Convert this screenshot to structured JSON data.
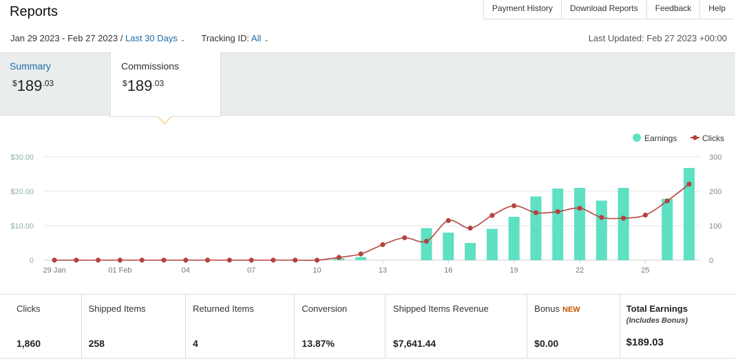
{
  "header": {
    "title": "Reports",
    "links": [
      "Payment History",
      "Download Reports",
      "Feedback",
      "Help"
    ]
  },
  "filters": {
    "date_range": "Jan 29 2023 - Feb 27 2023 /",
    "period": "Last 30 Days",
    "tracking_label": "Tracking ID:",
    "tracking_value": "All",
    "last_updated": "Last Updated: Feb 27 2023 +00:00"
  },
  "cards": {
    "summary": {
      "label": "Summary",
      "currency": "$",
      "whole": "189",
      "cents": ".03"
    },
    "commissions": {
      "label": "Commissions",
      "currency": "$",
      "whole": "189",
      "cents": ".03"
    }
  },
  "colors": {
    "earnings": "#5ee0c2",
    "clicks": "#b5423f",
    "link": "#1a6ca8"
  },
  "chart_data": {
    "type": "bar+line",
    "legend": [
      "Earnings",
      "Clicks"
    ],
    "legend_position": "top-right",
    "categories": [
      "29 Jan",
      "30",
      "31",
      "01 Feb",
      "02",
      "03",
      "04",
      "05",
      "06",
      "07",
      "08",
      "09",
      "10",
      "11",
      "12",
      "13",
      "14",
      "15",
      "16",
      "17",
      "18",
      "19",
      "20",
      "21",
      "22",
      "23",
      "24",
      "25",
      "26",
      "27"
    ],
    "x_tick_labels": [
      "29 Jan",
      "01 Feb",
      "04",
      "07",
      "10",
      "13",
      "16",
      "19",
      "22",
      "25"
    ],
    "x_tick_indices": [
      0,
      3,
      6,
      9,
      12,
      15,
      18,
      21,
      24,
      27
    ],
    "left_axis": {
      "ticks": [
        "$30.00",
        "$20.00",
        "$10.00",
        "0"
      ],
      "ylim": [
        0,
        30
      ]
    },
    "right_axis": {
      "ticks": [
        "300",
        "200",
        "100",
        "0"
      ],
      "ylim": [
        0,
        300
      ]
    },
    "series": [
      {
        "name": "Earnings",
        "axis": "left",
        "values": [
          0,
          0,
          0,
          0,
          0,
          0,
          0,
          0,
          0,
          0,
          0,
          0,
          0,
          0.6,
          0.9,
          0,
          0,
          9.3,
          8.0,
          5.0,
          9.1,
          12.6,
          18.5,
          20.8,
          21.0,
          17.3,
          21.0,
          0,
          17.8,
          26.8
        ]
      },
      {
        "name": "Clicks",
        "axis": "right",
        "values": [
          0,
          0,
          0,
          0,
          0,
          0,
          0,
          0,
          0,
          0,
          0,
          0,
          0,
          8,
          18,
          45,
          65,
          55,
          115,
          93,
          130,
          158,
          138,
          141,
          151,
          124,
          122,
          131,
          172,
          221
        ]
      }
    ],
    "grid": true
  },
  "stats": [
    {
      "label": "Clicks",
      "value": "1,860"
    },
    {
      "label": "Shipped Items",
      "value": "258"
    },
    {
      "label": "Returned Items",
      "value": "4"
    },
    {
      "label": "Conversion",
      "value": "13.87%"
    },
    {
      "label": "Shipped Items Revenue",
      "value": "$7,641.44"
    },
    {
      "label": "Bonus",
      "badge": "NEW",
      "value": "$0.00"
    },
    {
      "label": "Total Earnings",
      "sub": "(Includes Bonus)",
      "value": "$189.03"
    }
  ]
}
